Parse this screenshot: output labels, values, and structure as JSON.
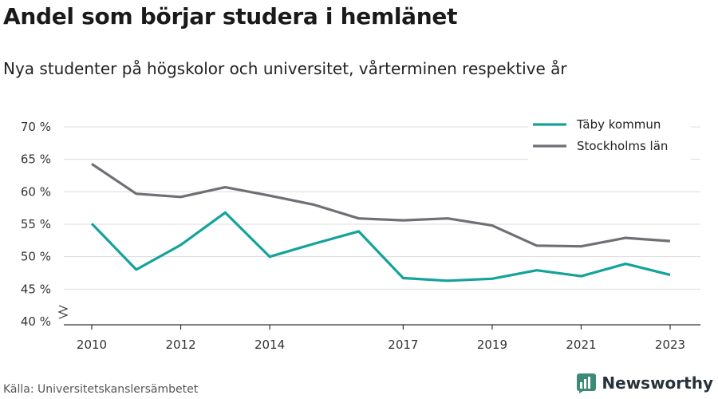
{
  "title": "Andel som börjar studera i hemlänet",
  "subtitle": "Nya studenter på högskolor och universitet, vårterminen respektive år",
  "source": "Källa: Universitetskanslersämbetet",
  "brand": {
    "name": "Newsworthy",
    "icon": "bar-chart-logo-icon",
    "color": "#3d8b76"
  },
  "chart_data": {
    "type": "line",
    "x_ticks": [
      "2010",
      "2012",
      "2014",
      "2017",
      "2019",
      "2021",
      "2023"
    ],
    "y_ticks": [
      "40 %",
      "45 %",
      "50 %",
      "55 %",
      "60 %",
      "65 %",
      "70 %"
    ],
    "ylim": [
      40,
      70
    ],
    "xlim": [
      2010,
      2023
    ],
    "y_axis_break": true,
    "grid": true,
    "legend_position": "top-right",
    "series": [
      {
        "name": "Täby kommun",
        "color": "#13a39b",
        "x": [
          2010,
          2011,
          2012,
          2013,
          2014,
          2015,
          2016,
          2017,
          2018,
          2019,
          2020,
          2021,
          2022,
          2023
        ],
        "values": [
          55.1,
          48.0,
          51.8,
          56.8,
          50.0,
          52.0,
          53.9,
          46.7,
          46.3,
          46.6,
          47.9,
          47.0,
          48.9,
          47.2
        ]
      },
      {
        "name": "Stockholms län",
        "color": "#6f6f76",
        "x": [
          2010,
          2011,
          2012,
          2013,
          2014,
          2015,
          2016,
          2017,
          2018,
          2019,
          2020,
          2021,
          2022,
          2023
        ],
        "values": [
          64.3,
          59.7,
          59.2,
          60.7,
          59.4,
          58.0,
          55.9,
          55.6,
          55.9,
          54.8,
          51.7,
          51.6,
          52.9,
          52.4
        ]
      }
    ]
  }
}
